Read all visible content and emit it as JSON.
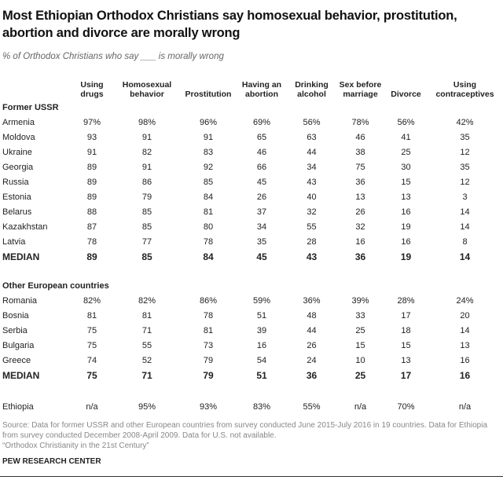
{
  "title": "Most Ethiopian Orthodox Christians say homosexual behavior, prostitution, abortion and divorce are morally wrong",
  "subtitle": "% of Orthodox Christians who say ___ is morally wrong",
  "chart_data": {
    "type": "table",
    "columns": [
      "Using drugs",
      "Homosexual behavior",
      "Prostitution",
      "Having an abortion",
      "Drinking alcohol",
      "Sex before marriage",
      "Divorce",
      "Using contraceptives"
    ],
    "groups": [
      {
        "name": "Former USSR",
        "rows": [
          {
            "country": "Armenia",
            "values": [
              "97%",
              "98%",
              "96%",
              "69%",
              "56%",
              "78%",
              "56%",
              "42%"
            ]
          },
          {
            "country": "Moldova",
            "values": [
              "93",
              "91",
              "91",
              "65",
              "63",
              "46",
              "41",
              "35"
            ]
          },
          {
            "country": "Ukraine",
            "values": [
              "91",
              "82",
              "83",
              "46",
              "44",
              "38",
              "25",
              "12"
            ]
          },
          {
            "country": "Georgia",
            "values": [
              "89",
              "91",
              "92",
              "66",
              "34",
              "75",
              "30",
              "35"
            ]
          },
          {
            "country": "Russia",
            "values": [
              "89",
              "86",
              "85",
              "45",
              "43",
              "36",
              "15",
              "12"
            ]
          },
          {
            "country": "Estonia",
            "values": [
              "89",
              "79",
              "84",
              "26",
              "40",
              "13",
              "13",
              "3"
            ]
          },
          {
            "country": "Belarus",
            "values": [
              "88",
              "85",
              "81",
              "37",
              "32",
              "26",
              "16",
              "14"
            ]
          },
          {
            "country": "Kazakhstan",
            "values": [
              "87",
              "85",
              "80",
              "34",
              "55",
              "32",
              "19",
              "14"
            ]
          },
          {
            "country": "Latvia",
            "values": [
              "78",
              "77",
              "78",
              "35",
              "28",
              "16",
              "16",
              "8"
            ]
          }
        ],
        "median": {
          "label": "MEDIAN",
          "values": [
            "89",
            "85",
            "84",
            "45",
            "43",
            "36",
            "19",
            "14"
          ]
        }
      },
      {
        "name": "Other European countries",
        "rows": [
          {
            "country": "Romania",
            "values": [
              "82%",
              "82%",
              "86%",
              "59%",
              "36%",
              "39%",
              "28%",
              "24%"
            ]
          },
          {
            "country": "Bosnia",
            "values": [
              "81",
              "81",
              "78",
              "51",
              "48",
              "33",
              "17",
              "20"
            ]
          },
          {
            "country": "Serbia",
            "values": [
              "75",
              "71",
              "81",
              "39",
              "44",
              "25",
              "18",
              "14"
            ]
          },
          {
            "country": "Bulgaria",
            "values": [
              "75",
              "55",
              "73",
              "16",
              "26",
              "15",
              "15",
              "13"
            ]
          },
          {
            "country": "Greece",
            "values": [
              "74",
              "52",
              "79",
              "54",
              "24",
              "10",
              "13",
              "16"
            ]
          }
        ],
        "median": {
          "label": "MEDIAN",
          "values": [
            "75",
            "71",
            "79",
            "51",
            "36",
            "25",
            "17",
            "16"
          ]
        }
      }
    ],
    "extra": {
      "country": "Ethiopia",
      "values": [
        "n/a",
        "95%",
        "93%",
        "83%",
        "55%",
        "n/a",
        "70%",
        "n/a"
      ]
    }
  },
  "source_lines": [
    "Source: Data for former USSR and other European countries from survey conducted June 2015-July 2016 in 19 countries. Data for Ethiopia from survey conducted December 2008-April 2009. Data for U.S. not available.",
    "“Orthodox Christianity in the 21st Century”"
  ],
  "credit": "PEW RESEARCH CENTER"
}
